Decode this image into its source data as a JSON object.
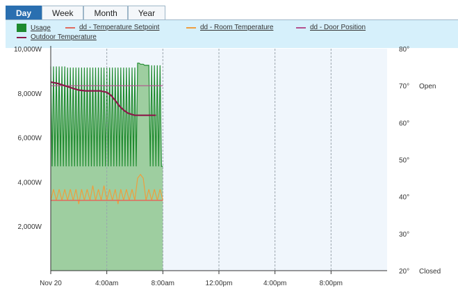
{
  "tabs": [
    {
      "label": "Day",
      "active": true
    },
    {
      "label": "Week",
      "active": false
    },
    {
      "label": "Month",
      "active": false
    },
    {
      "label": "Year",
      "active": false
    }
  ],
  "chart_data": {
    "type": "line",
    "title": "",
    "legend_position": "top",
    "grid": "vertical dashed",
    "legend": [
      {
        "name": "Usage",
        "color": "#1e8a2e",
        "style": "box"
      },
      {
        "name": "dd - Temperature Setpoint",
        "color": "#e06a5e",
        "style": "line"
      },
      {
        "name": "dd - Room Temperature",
        "color": "#ee9e3e",
        "style": "line"
      },
      {
        "name": "dd - Door Position",
        "color": "#b4508e",
        "style": "line"
      },
      {
        "name": "Outdoor Temperature",
        "color": "#8b1848",
        "style": "line"
      }
    ],
    "x_axis": {
      "ticks": [
        "Nov 20",
        "4:00am",
        "8:00am",
        "12:00pm",
        "4:00pm",
        "8:00pm"
      ],
      "tick_hours": [
        0,
        4,
        8,
        12,
        16,
        20
      ],
      "range_hours": [
        0,
        24
      ]
    },
    "y_left": {
      "unit": "W",
      "range": [
        0,
        10000
      ],
      "ticks": [
        "2,000W",
        "4,000W",
        "6,000W",
        "8,000W",
        "10,000W"
      ],
      "tick_values": [
        2000,
        4000,
        6000,
        8000,
        10000
      ]
    },
    "y_right": {
      "range": [
        20,
        80
      ],
      "ticks": [
        "20°",
        "30°",
        "40°",
        "50°",
        "60°",
        "70°",
        "80°"
      ],
      "tick_values": [
        20,
        30,
        40,
        50,
        60,
        70,
        80
      ]
    },
    "door_labels": [
      "Open",
      "Closed"
    ],
    "series": [
      {
        "name": "Usage",
        "axis": "left",
        "x": [
          0,
          0.1,
          0.2,
          0.3,
          0.4,
          0.5,
          0.6,
          0.7,
          0.8,
          0.9,
          1.0,
          1.1,
          1.2,
          1.3,
          1.4,
          1.5,
          1.6,
          1.7,
          1.8,
          1.9,
          2.0,
          2.1,
          2.2,
          2.3,
          2.4,
          2.5,
          2.6,
          2.7,
          2.8,
          2.9,
          3.0,
          3.1,
          3.2,
          3.3,
          3.4,
          3.5,
          3.6,
          3.7,
          3.8,
          3.9,
          4.0,
          4.1,
          4.2,
          4.3,
          4.4,
          4.5,
          4.6,
          4.7,
          4.8,
          4.9,
          5.0,
          5.1,
          5.2,
          5.3,
          5.4,
          5.5,
          5.6,
          5.7,
          5.8,
          5.9,
          6.0,
          6.1,
          6.2,
          6.3,
          6.4,
          6.5,
          6.6,
          6.7,
          6.8,
          6.9,
          7.0,
          7.1,
          7.2,
          7.3,
          7.4,
          7.5,
          7.6,
          7.7,
          7.8,
          7.9,
          8.0
        ],
        "y": [
          9200,
          4700,
          9200,
          4700,
          9200,
          4700,
          9200,
          4700,
          9200,
          4700,
          9200,
          4700,
          9150,
          4700,
          9150,
          4700,
          9150,
          4700,
          9150,
          4700,
          9150,
          4700,
          9150,
          4700,
          9150,
          4700,
          9150,
          4700,
          9150,
          4700,
          9150,
          4700,
          9150,
          4700,
          9150,
          4700,
          9150,
          4700,
          9150,
          4700,
          9150,
          4700,
          9150,
          4700,
          9150,
          4700,
          9150,
          4700,
          9150,
          4700,
          9150,
          4700,
          9150,
          4700,
          9150,
          4700,
          9150,
          4700,
          9150,
          4700,
          9150,
          4700,
          9350,
          9350,
          9300,
          9300,
          9300,
          9250,
          9250,
          9250,
          9250,
          4700,
          9250,
          4700,
          9250,
          4700,
          9250,
          4700,
          9250,
          4700,
          4700
        ]
      },
      {
        "name": "dd - Temperature Setpoint",
        "axis": "right",
        "x": [
          0,
          8
        ],
        "y": [
          39,
          39
        ]
      },
      {
        "name": "dd - Room Temperature",
        "axis": "right",
        "x": [
          0,
          0.2,
          0.4,
          0.6,
          0.8,
          1.0,
          1.2,
          1.4,
          1.6,
          1.8,
          2.0,
          2.2,
          2.4,
          2.6,
          2.8,
          3.0,
          3.2,
          3.4,
          3.6,
          3.8,
          4.0,
          4.2,
          4.4,
          4.6,
          4.8,
          5.0,
          5.2,
          5.4,
          5.6,
          5.8,
          6.0,
          6.2,
          6.4,
          6.6,
          6.8,
          7.0,
          7.2,
          7.4,
          7.6,
          7.8,
          8.0
        ],
        "y": [
          39,
          42,
          39,
          42,
          39,
          42,
          39,
          42,
          39,
          42,
          38,
          42,
          39,
          42,
          39,
          43,
          39,
          42,
          39,
          43,
          39,
          42,
          39,
          42,
          38,
          42,
          39,
          42,
          39,
          42,
          39,
          45,
          46,
          45,
          39,
          42,
          39,
          42,
          39,
          42,
          39
        ]
      },
      {
        "name": "dd - Door Position",
        "axis": "right",
        "x": [
          0,
          8
        ],
        "y": [
          70,
          70
        ]
      },
      {
        "name": "Outdoor Temperature",
        "axis": "right",
        "x": [
          0,
          0.5,
          1.0,
          1.5,
          2.0,
          2.5,
          3.0,
          3.5,
          4.0,
          4.3,
          4.6,
          4.9,
          5.2,
          5.5,
          5.8,
          6.0,
          6.5,
          7.0,
          7.5
        ],
        "y": [
          71,
          70.6,
          70,
          69.4,
          68.8,
          68.6,
          68.6,
          68.6,
          68.2,
          67.4,
          66,
          64.5,
          63.4,
          62.6,
          62.2,
          62,
          62,
          62,
          62
        ]
      }
    ]
  }
}
